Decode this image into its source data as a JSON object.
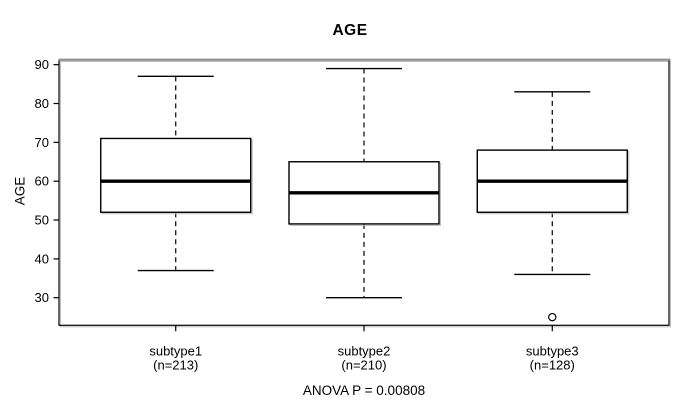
{
  "title": "AGE",
  "footer": {
    "anova_text": "ANOVA P = 0.00808"
  },
  "colors": {
    "background": "#ffffff",
    "box_stroke": "#000000",
    "box_fill": "#ffffff",
    "median": "#000000",
    "whisker": "#000000",
    "shadow": "#bdbdbd",
    "frame": "#000000",
    "frame_top": "#909090",
    "text": "#000000"
  },
  "chart_data": {
    "type": "boxplot",
    "title": "AGE",
    "ylabel": "AGE",
    "xlabel": "",
    "annotation": "ANOVA P = 0.00808",
    "anova_p": "0.00808",
    "yticks": [
      30,
      40,
      50,
      60,
      70,
      80,
      90
    ],
    "ylim": [
      22.9,
      91.2
    ],
    "grid": false,
    "legend": "none",
    "groups": [
      {
        "label": "subtype1",
        "count_label": "(n=213)",
        "n": 213,
        "whisker_low": 37,
        "q1": 52,
        "median": 60,
        "q3": 71,
        "whisker_high": 87,
        "outliers": []
      },
      {
        "label": "subtype2",
        "count_label": "(n=210)",
        "n": 210,
        "whisker_low": 30,
        "q1": 49,
        "median": 57,
        "q3": 65,
        "whisker_high": 89,
        "outliers": []
      },
      {
        "label": "subtype3",
        "count_label": "(n=128)",
        "n": 128,
        "whisker_low": 36,
        "q1": 52,
        "median": 60,
        "q3": 68,
        "whisker_high": 83,
        "outliers": [
          25
        ]
      }
    ]
  }
}
